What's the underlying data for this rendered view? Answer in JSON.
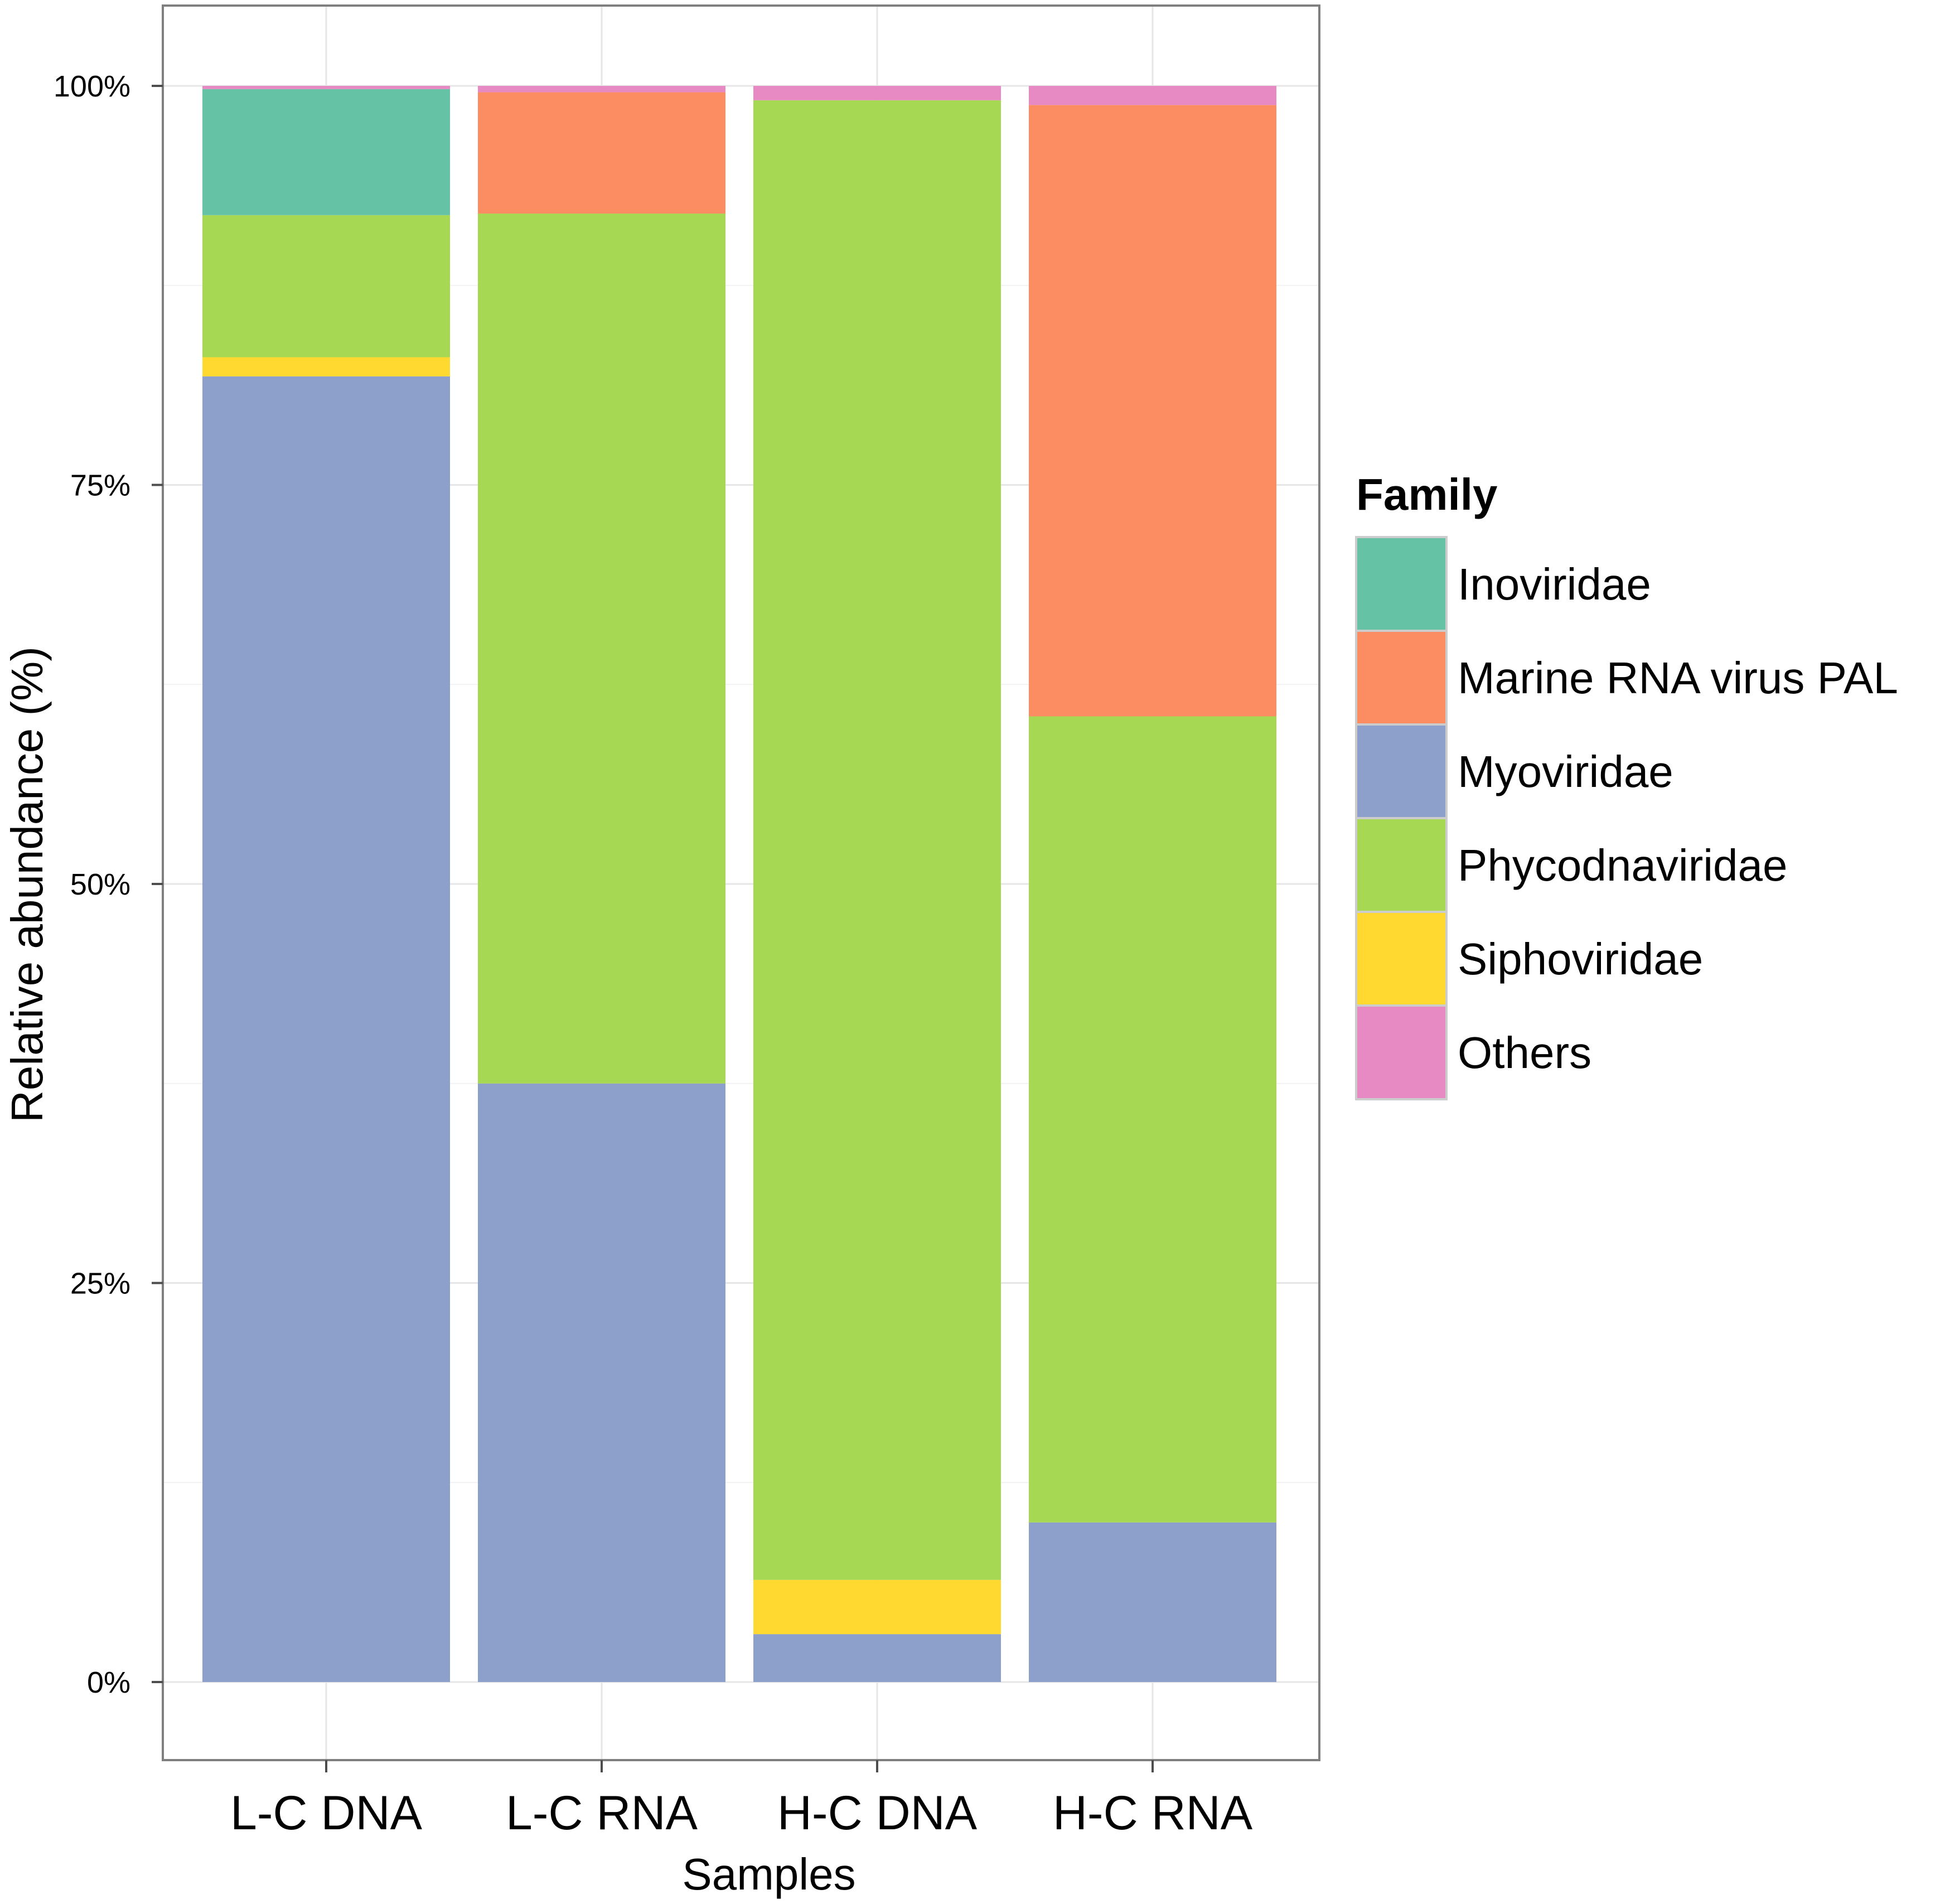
{
  "chart_data": {
    "type": "bar",
    "stacked": true,
    "title": "",
    "xlabel": "Samples",
    "ylabel": "Relative abundance (%)",
    "ylim": [
      0,
      100
    ],
    "y_ticks": [
      0,
      25,
      50,
      75,
      100
    ],
    "y_tick_labels": [
      "0%",
      "25%",
      "50%",
      "75%",
      "100%"
    ],
    "categories": [
      "L-C DNA",
      "L-C RNA",
      "H-C DNA",
      "H-C RNA"
    ],
    "grid": true,
    "legend": {
      "title": "Family",
      "position": "right"
    },
    "series": [
      {
        "name": "Myoviridae",
        "color": "#8DA0CB",
        "values": [
          81.8,
          37.5,
          3.0,
          10.0
        ]
      },
      {
        "name": "Siphoviridae",
        "color": "#FFD92F",
        "values": [
          1.2,
          0.0,
          3.4,
          0.0
        ]
      },
      {
        "name": "Phycodnaviridae",
        "color": "#A6D854",
        "values": [
          8.9,
          54.5,
          92.7,
          50.5
        ]
      },
      {
        "name": "Marine RNA virus PAL",
        "color": "#FC8D62",
        "values": [
          0.0,
          7.6,
          0.0,
          38.3
        ]
      },
      {
        "name": "Inoviridae",
        "color": "#66C2A5",
        "values": [
          7.9,
          0.0,
          0.0,
          0.0
        ]
      },
      {
        "name": "Others",
        "color": "#E78AC3",
        "values": [
          0.2,
          0.4,
          0.9,
          1.2
        ]
      }
    ],
    "legend_order": [
      "Inoviridae",
      "Marine RNA virus PAL",
      "Myoviridae",
      "Phycodnaviridae",
      "Siphoviridae",
      "Others"
    ]
  }
}
